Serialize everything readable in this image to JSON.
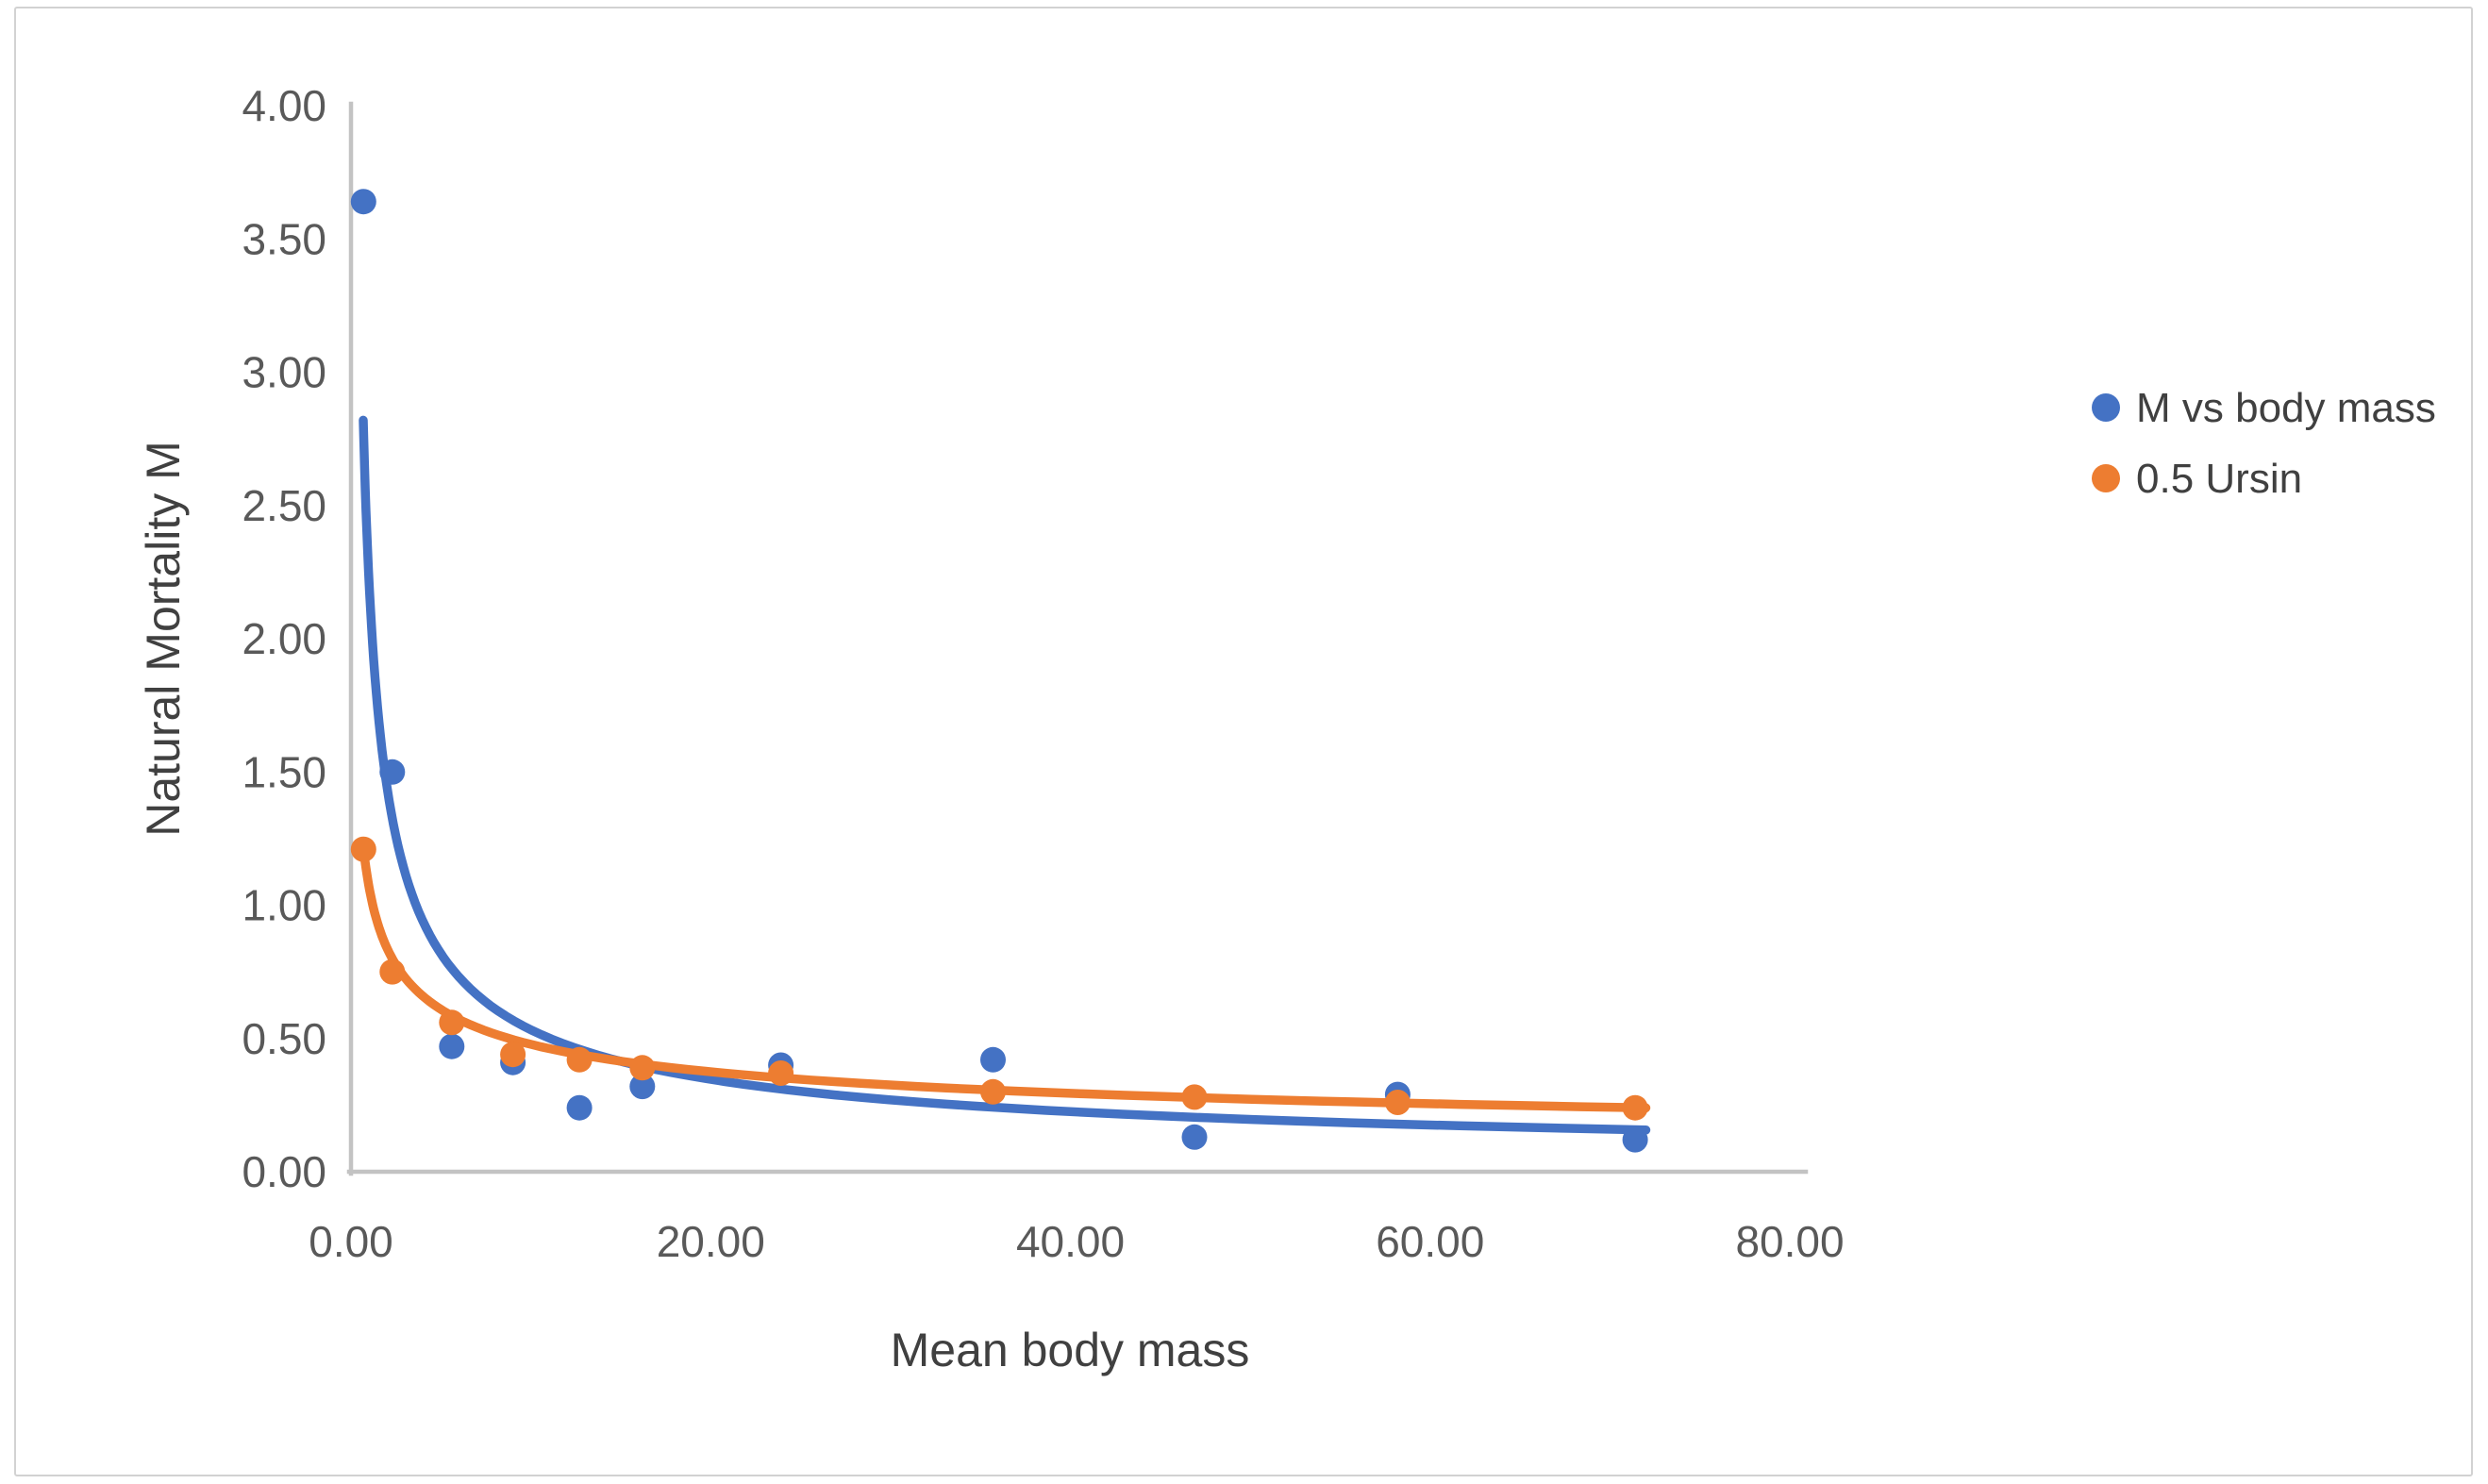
{
  "chart_data": {
    "type": "scatter",
    "title": "",
    "xlabel": "Mean body mass",
    "ylabel": "Natural Mortality M",
    "xlim": [
      0,
      80
    ],
    "ylim": [
      0,
      4
    ],
    "grid": false,
    "legend_position": "right",
    "axis_color": "#c3c3c3",
    "tick_label_color": "#595959",
    "axis_title_color": "#404040",
    "x_ticks": [
      {
        "v": 0,
        "label": "0.00"
      },
      {
        "v": 20,
        "label": "20.00"
      },
      {
        "v": 40,
        "label": "40.00"
      },
      {
        "v": 60,
        "label": "60.00"
      },
      {
        "v": 80,
        "label": "80.00"
      }
    ],
    "y_ticks": [
      {
        "v": 0.0,
        "label": "0.00"
      },
      {
        "v": 0.5,
        "label": "0.50"
      },
      {
        "v": 1.0,
        "label": "1.00"
      },
      {
        "v": 1.5,
        "label": "1.50"
      },
      {
        "v": 2.0,
        "label": "2.00"
      },
      {
        "v": 2.5,
        "label": "2.50"
      },
      {
        "v": 3.0,
        "label": "3.00"
      },
      {
        "v": 3.5,
        "label": "3.50"
      },
      {
        "v": 4.0,
        "label": "4.00"
      }
    ],
    "series": [
      {
        "name": "M vs body mass",
        "color": "#4472c4",
        "marker": "circle",
        "x": [
          0.7,
          2.3,
          5.6,
          9.0,
          12.7,
          16.2,
          23.9,
          35.7,
          46.9,
          58.2,
          71.4
        ],
        "y": [
          3.64,
          1.5,
          0.47,
          0.41,
          0.24,
          0.32,
          0.4,
          0.42,
          0.13,
          0.29,
          0.12
        ],
        "trendline": {
          "type": "power",
          "a": 2.22,
          "b": -0.62,
          "x_start": 0.68,
          "x_end": 72.0
        }
      },
      {
        "name": "0.5 Ursin",
        "color": "#ed7d31",
        "marker": "circle",
        "x": [
          0.7,
          2.3,
          5.6,
          9.0,
          12.7,
          16.2,
          23.9,
          35.7,
          46.9,
          58.2,
          71.4
        ],
        "y": [
          1.21,
          0.75,
          0.56,
          0.44,
          0.42,
          0.39,
          0.37,
          0.3,
          0.28,
          0.26,
          0.24
        ],
        "trendline": {
          "type": "power",
          "a": 1.07,
          "b": -0.35,
          "x_start": 0.68,
          "x_end": 72.0
        }
      }
    ]
  }
}
